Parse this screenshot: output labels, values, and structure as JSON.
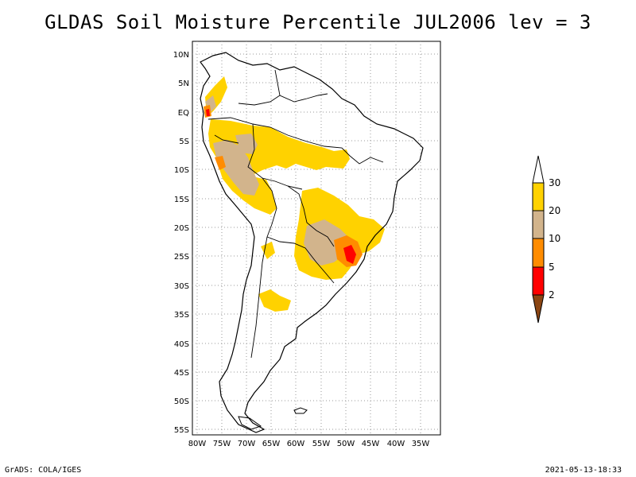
{
  "title": "GLDAS Soil Moisture Percentile JUL2006 lev = 3",
  "footer": {
    "left": "GrADS: COLA/IGES",
    "right": "2021-05-13-18:33"
  },
  "map": {
    "lat_labels": [
      "10N",
      "5N",
      "EQ",
      "5S",
      "10S",
      "15S",
      "20S",
      "25S",
      "30S",
      "35S",
      "40S",
      "45S",
      "50S",
      "55S"
    ],
    "lon_labels": [
      "80W",
      "75W",
      "70W",
      "65W",
      "60W",
      "55W",
      "50W",
      "45W",
      "40W",
      "35W"
    ],
    "lon_range": [
      -81,
      -33
    ],
    "lat_range": [
      -56,
      12
    ],
    "grid": true
  },
  "legend": {
    "labels": [
      "30",
      "20",
      "10",
      "5",
      "2"
    ],
    "colors": {
      "above_30": "#ffffff",
      "20_30": "#ffd200",
      "10_20": "#d2b48c",
      "5_10": "#ff8c00",
      "2_5": "#ff0000",
      "below_2": "#8b4513"
    }
  }
}
